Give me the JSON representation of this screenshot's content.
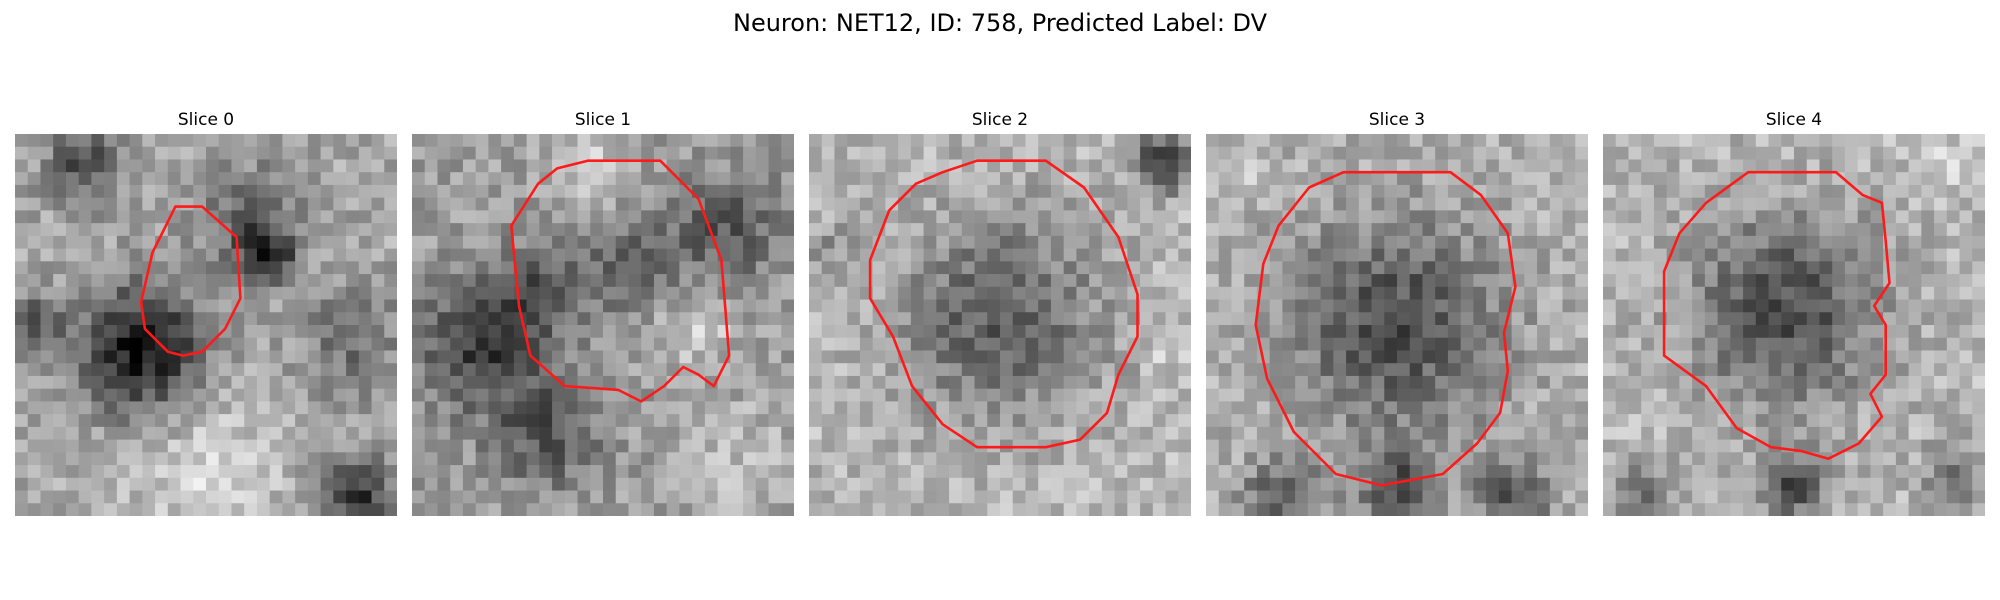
{
  "figure": {
    "title": "Neuron: NET12, ID: 758, Predicted Label: DV"
  },
  "colors": {
    "contour": "#ff1a1a",
    "background": "#ffffff"
  },
  "panels": [
    {
      "title": "Slice 0"
    },
    {
      "title": "Slice 1"
    },
    {
      "title": "Slice 2"
    },
    {
      "title": "Slice 3"
    },
    {
      "title": "Slice 4"
    }
  ]
}
